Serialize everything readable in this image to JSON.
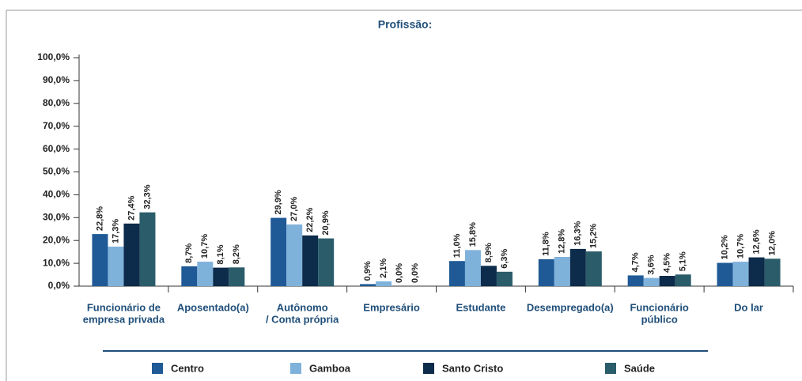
{
  "chart_data": {
    "type": "bar",
    "title": "Profissão:",
    "categories": [
      [
        "Funcionário de",
        "empresa privada"
      ],
      [
        "Aposentado(a)"
      ],
      [
        "Autônomo",
        "/ Conta própria"
      ],
      [
        "Empresário"
      ],
      [
        "Estudante"
      ],
      [
        "Desempregado(a)"
      ],
      [
        "Funcionário",
        "público"
      ],
      [
        "Do lar"
      ]
    ],
    "series": [
      {
        "name": "Centro",
        "color": "#1f5a96",
        "values": [
          22.8,
          8.7,
          29.9,
          0.9,
          11.0,
          11.8,
          4.7,
          10.2
        ],
        "value_labels": [
          "22,8%",
          "8,7%",
          "29,9%",
          "0,9%",
          "11,0%",
          "11,8%",
          "4,7%",
          "10,2%"
        ]
      },
      {
        "name": "Gamboa",
        "color": "#7fb2db",
        "values": [
          17.3,
          10.7,
          27.0,
          2.1,
          15.8,
          12.8,
          3.6,
          10.7
        ],
        "value_labels": [
          "17,3%",
          "10,7%",
          "27,0%",
          "2,1%",
          "15,8%",
          "12,8%",
          "3,6%",
          "10,7%"
        ]
      },
      {
        "name": "Santo Cristo",
        "color": "#0d2b4a",
        "values": [
          27.4,
          8.1,
          22.2,
          0.0,
          8.9,
          16.3,
          4.5,
          12.6
        ],
        "value_labels": [
          "27,4%",
          "8,1%",
          "22,2%",
          "0,0%",
          "8,9%",
          "16,3%",
          "4,5%",
          "12,6%"
        ]
      },
      {
        "name": "Saúde",
        "color": "#2a5c6a",
        "values": [
          32.3,
          8.2,
          20.9,
          0.0,
          6.3,
          15.2,
          5.1,
          12.0
        ],
        "value_labels": [
          "32,3%",
          "8,2%",
          "20,9%",
          "0,0%",
          "6,3%",
          "15,2%",
          "5,1%",
          "12,0%"
        ]
      }
    ],
    "ylim": [
      0,
      100
    ],
    "yticks": [
      {
        "value": 0,
        "label": "0,0%"
      },
      {
        "value": 10,
        "label": "10,0%"
      },
      {
        "value": 20,
        "label": "20,0%"
      },
      {
        "value": 30,
        "label": "30,0%"
      },
      {
        "value": 40,
        "label": "40,0%"
      },
      {
        "value": 50,
        "label": "50,0%"
      },
      {
        "value": 60,
        "label": "60,0%"
      },
      {
        "value": 70,
        "label": "70,0%"
      },
      {
        "value": 80,
        "label": "80,0%"
      },
      {
        "value": 90,
        "label": "90,0%"
      },
      {
        "value": 100,
        "label": "100,0%"
      }
    ],
    "grid": false
  }
}
